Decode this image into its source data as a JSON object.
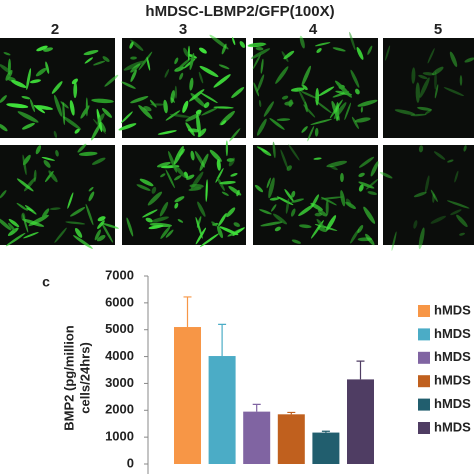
{
  "figure": {
    "title": "hMDSC-LBMP2/GFP(100X)",
    "columns": [
      "2",
      "3",
      "4",
      "5"
    ],
    "panel_label": "c"
  },
  "chart_data": {
    "type": "bar",
    "ylabel": [
      "BMP2 (pg/million",
      "cells/24hrs)"
    ],
    "ylim": [
      0,
      7000
    ],
    "yticks": [
      0,
      1000,
      2000,
      3000,
      4000,
      5000,
      6000,
      7000
    ],
    "series": [
      {
        "name": "hMDS",
        "color": "#f79646",
        "values": [
          5100
        ],
        "errors": [
          1120
        ]
      },
      {
        "name": "hMDS",
        "color": "#4bacc6",
        "values": [
          4020
        ],
        "errors": [
          1180
        ]
      },
      {
        "name": "hMDS",
        "color": "#8064a2",
        "values": [
          1950
        ],
        "errors": [
          270
        ]
      },
      {
        "name": "hMDS",
        "color": "#c0601e",
        "values": [
          1850
        ],
        "errors": [
          70
        ]
      },
      {
        "name": "hMDS",
        "color": "#215e6e",
        "values": [
          1170
        ],
        "errors": [
          50
        ]
      },
      {
        "name": "hMDS",
        "color": "#4f3d63",
        "values": [
          3150
        ],
        "errors": [
          680
        ]
      }
    ]
  }
}
